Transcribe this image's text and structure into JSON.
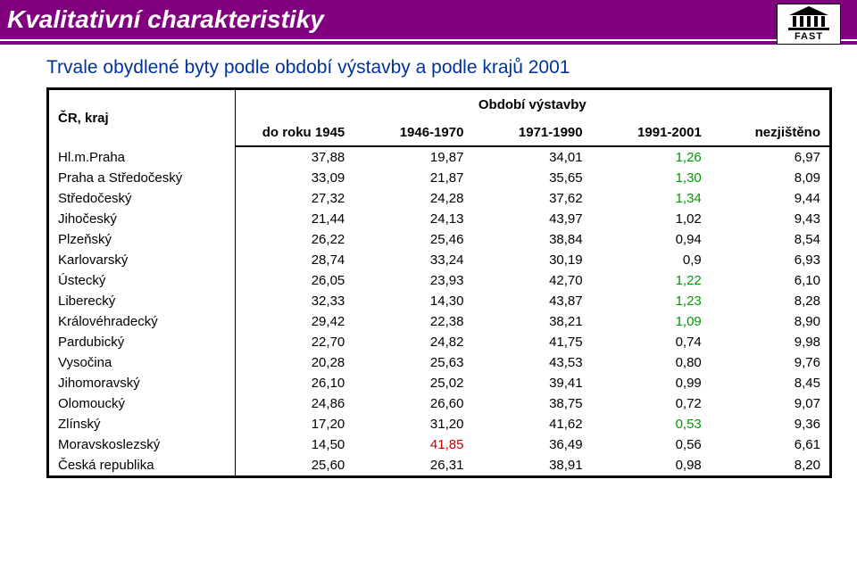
{
  "header": {
    "title": "Kvalitativní charakteristiky",
    "logo_text": "FAST"
  },
  "subtitle": "Trvale obydlené byty podle období výstavby a podle krajů 2001",
  "table": {
    "region_header": "ČR, kraj",
    "super_header": "Období výstavby",
    "columns": [
      "do roku 1945",
      "1946-1970",
      "1971-1990",
      "1991-2001",
      "nezjištěno"
    ],
    "rows": [
      {
        "label": "Hl.m.Praha",
        "vals": [
          "37,88",
          "19,87",
          "34,01",
          "1,26",
          "6,97"
        ],
        "colors": [
          "",
          "",
          "",
          "green",
          ""
        ]
      },
      {
        "label": "Praha a Středočeský",
        "vals": [
          "33,09",
          "21,87",
          "35,65",
          "1,30",
          "8,09"
        ],
        "colors": [
          "",
          "",
          "",
          "green",
          ""
        ]
      },
      {
        "label": "Středočeský",
        "vals": [
          "27,32",
          "24,28",
          "37,62",
          "1,34",
          "9,44"
        ],
        "colors": [
          "",
          "",
          "",
          "green",
          ""
        ]
      },
      {
        "label": "Jihočeský",
        "vals": [
          "21,44",
          "24,13",
          "43,97",
          "1,02",
          "9,43"
        ],
        "colors": [
          "",
          "",
          "",
          "",
          ""
        ]
      },
      {
        "label": "Plzeňský",
        "vals": [
          "26,22",
          "25,46",
          "38,84",
          "0,94",
          "8,54"
        ],
        "colors": [
          "",
          "",
          "",
          "",
          ""
        ]
      },
      {
        "label": "Karlovarský",
        "vals": [
          "28,74",
          "33,24",
          "30,19",
          "0,9",
          "6,93"
        ],
        "colors": [
          "",
          "",
          "",
          "",
          ""
        ]
      },
      {
        "label": "Ústecký",
        "vals": [
          "26,05",
          "23,93",
          "42,70",
          "1,22",
          "6,10"
        ],
        "colors": [
          "",
          "",
          "",
          "green",
          ""
        ]
      },
      {
        "label": "Liberecký",
        "vals": [
          "32,33",
          "14,30",
          "43,87",
          "1,23",
          "8,28"
        ],
        "colors": [
          "",
          "",
          "",
          "green",
          ""
        ]
      },
      {
        "label": "Královéhradecký",
        "vals": [
          "29,42",
          "22,38",
          "38,21",
          "1,09",
          "8,90"
        ],
        "colors": [
          "",
          "",
          "",
          "green",
          ""
        ]
      },
      {
        "label": "Pardubický",
        "vals": [
          "22,70",
          "24,82",
          "41,75",
          "0,74",
          "9,98"
        ],
        "colors": [
          "",
          "",
          "",
          "",
          ""
        ]
      },
      {
        "label": "Vysočina",
        "vals": [
          "20,28",
          "25,63",
          "43,53",
          "0,80",
          "9,76"
        ],
        "colors": [
          "",
          "",
          "",
          "",
          ""
        ]
      },
      {
        "label": "Jihomoravský",
        "vals": [
          "26,10",
          "25,02",
          "39,41",
          "0,99",
          "8,45"
        ],
        "colors": [
          "",
          "",
          "",
          "",
          ""
        ]
      },
      {
        "label": "Olomoucký",
        "vals": [
          "24,86",
          "26,60",
          "38,75",
          "0,72",
          "9,07"
        ],
        "colors": [
          "",
          "",
          "",
          "",
          ""
        ]
      },
      {
        "label": "Zlínský",
        "vals": [
          "17,20",
          "31,20",
          "41,62",
          "0,53",
          "9,36"
        ],
        "colors": [
          "",
          "",
          "",
          "green",
          ""
        ]
      },
      {
        "label": "Moravskoslezský",
        "vals": [
          "14,50",
          "41,85",
          "36,49",
          "0,56",
          "6,61"
        ],
        "colors": [
          "",
          "red",
          "",
          "",
          ""
        ]
      },
      {
        "label": "Česká republika",
        "vals": [
          "25,60",
          "26,31",
          "38,91",
          "0,98",
          "8,20"
        ],
        "colors": [
          "",
          "",
          "",
          "",
          ""
        ]
      }
    ]
  },
  "style": {
    "header_bg": "#800080",
    "header_text": "#ffffff",
    "subtitle_color": "#003399",
    "green": "#009900",
    "red": "#cc0000",
    "border_color": "#000000"
  }
}
